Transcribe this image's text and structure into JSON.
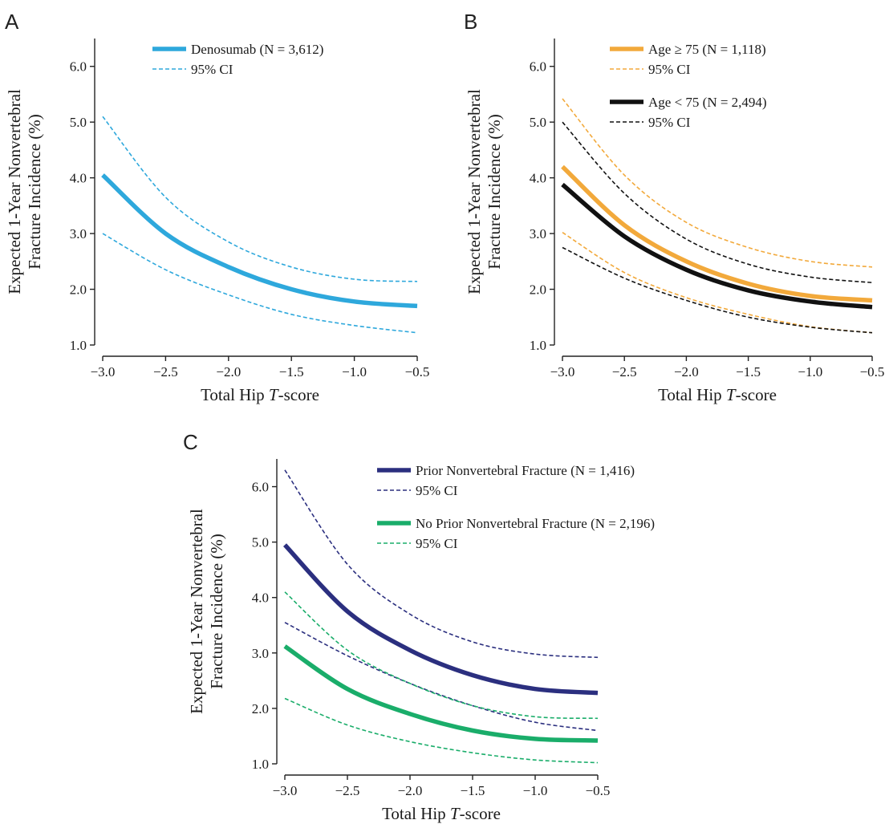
{
  "chart_data": [
    {
      "type": "line",
      "panel": "A",
      "xlabel": [
        "Total Hip ",
        "T",
        "-score"
      ],
      "ylabel": [
        "Expected 1-Year Nonvertebral",
        "Fracture Incidence (%)"
      ],
      "xlim": [
        -3.0,
        -0.5
      ],
      "ylim": [
        1.0,
        6.5
      ],
      "xticks": [
        -3.0,
        -2.5,
        -2.0,
        -1.5,
        -1.0,
        -0.5
      ],
      "xtick_labels": [
        "−3.0",
        "−2.5",
        "−2.0",
        "−1.5",
        "−1.0",
        "−0.5"
      ],
      "yticks": [
        1.0,
        2.0,
        3.0,
        4.0,
        5.0,
        6.0
      ],
      "ytick_labels": [
        "1.0",
        "2.0",
        "3.0",
        "4.0",
        "5.0",
        "6.0"
      ],
      "grid": false,
      "legend_position": "top-right",
      "x": [
        -3.0,
        -2.5,
        -2.0,
        -1.5,
        -1.0,
        -0.5
      ],
      "series": [
        {
          "name": "Denosumab (N = 3,612)",
          "color": "#2ea8dc",
          "style": "solid",
          "values": [
            4.05,
            3.0,
            2.4,
            2.0,
            1.78,
            1.7
          ]
        },
        {
          "name": "95% CI",
          "color": "#2ea8dc",
          "style": "dashed",
          "values": [
            5.1,
            3.65,
            2.85,
            2.4,
            2.18,
            2.14
          ]
        },
        {
          "name": "",
          "color": "#2ea8dc",
          "style": "dashed",
          "values": [
            3.0,
            2.35,
            1.9,
            1.55,
            1.35,
            1.22
          ]
        }
      ]
    },
    {
      "type": "line",
      "panel": "B",
      "xlabel": [
        "Total Hip ",
        "T",
        "-score"
      ],
      "ylabel": [
        "Expected 1-Year Nonvertebral",
        "Fracture Incidence (%)"
      ],
      "xlim": [
        -3.0,
        -0.5
      ],
      "ylim": [
        1.0,
        6.5
      ],
      "xticks": [
        -3.0,
        -2.5,
        -2.0,
        -1.5,
        -1.0,
        -0.5
      ],
      "xtick_labels": [
        "−3.0",
        "−2.5",
        "−2.0",
        "−1.5",
        "−1.0",
        "−0.5"
      ],
      "yticks": [
        1.0,
        2.0,
        3.0,
        4.0,
        5.0,
        6.0
      ],
      "ytick_labels": [
        "1.0",
        "2.0",
        "3.0",
        "4.0",
        "5.0",
        "6.0"
      ],
      "grid": false,
      "legend_position": "top-right",
      "x": [
        -3.0,
        -2.5,
        -2.0,
        -1.5,
        -1.0,
        -0.5
      ],
      "series": [
        {
          "name": "Age ≥ 75 (N = 1,118)",
          "color": "#f2a93b",
          "style": "solid",
          "values": [
            4.2,
            3.15,
            2.5,
            2.1,
            1.88,
            1.8
          ]
        },
        {
          "name": "95% CI",
          "color": "#f2a93b",
          "style": "dashed",
          "values": [
            5.42,
            4.05,
            3.2,
            2.75,
            2.5,
            2.4
          ]
        },
        {
          "name": "",
          "color": "#f2a93b",
          "style": "dashed",
          "values": [
            3.02,
            2.3,
            1.85,
            1.55,
            1.33,
            1.22
          ]
        },
        {
          "name": "Age < 75 (N = 2,494)",
          "color": "#111111",
          "style": "solid",
          "values": [
            3.88,
            2.95,
            2.35,
            1.98,
            1.78,
            1.68
          ]
        },
        {
          "name": "95% CI",
          "color": "#111111",
          "style": "dashed",
          "values": [
            5.0,
            3.72,
            2.9,
            2.45,
            2.22,
            2.12
          ]
        },
        {
          "name": "",
          "color": "#111111",
          "style": "dashed",
          "values": [
            2.75,
            2.2,
            1.8,
            1.5,
            1.32,
            1.22
          ]
        }
      ]
    },
    {
      "type": "line",
      "panel": "C",
      "xlabel": [
        "Total Hip ",
        "T",
        "-score"
      ],
      "ylabel": [
        "Expected 1-Year Nonvertebral",
        "Fracture Incidence (%)"
      ],
      "xlim": [
        -3.0,
        -0.5
      ],
      "ylim": [
        1.0,
        6.5
      ],
      "xticks": [
        -3.0,
        -2.5,
        -2.0,
        -1.5,
        -1.0,
        -0.5
      ],
      "xtick_labels": [
        "−3.0",
        "−2.5",
        "−2.0",
        "−1.5",
        "−1.0",
        "−0.5"
      ],
      "yticks": [
        1.0,
        2.0,
        3.0,
        4.0,
        5.0,
        6.0
      ],
      "ytick_labels": [
        "1.0",
        "2.0",
        "3.0",
        "4.0",
        "5.0",
        "6.0"
      ],
      "grid": false,
      "legend_position": "top-right",
      "x": [
        -3.0,
        -2.5,
        -2.0,
        -1.5,
        -1.0,
        -0.5
      ],
      "series": [
        {
          "name": "Prior Nonvertebral Fracture (N = 1,416)",
          "color": "#2b2f7f",
          "style": "solid",
          "values": [
            4.95,
            3.75,
            3.05,
            2.6,
            2.35,
            2.28
          ]
        },
        {
          "name": "95% CI",
          "color": "#2b2f7f",
          "style": "dashed",
          "values": [
            6.3,
            4.6,
            3.7,
            3.2,
            2.98,
            2.92
          ]
        },
        {
          "name": "",
          "color": "#2b2f7f",
          "style": "dashed",
          "values": [
            3.55,
            2.95,
            2.45,
            2.05,
            1.75,
            1.6
          ]
        },
        {
          "name": "No Prior Nonvertebral Fracture (N = 2,196)",
          "color": "#1aad6a",
          "style": "solid",
          "values": [
            3.12,
            2.35,
            1.9,
            1.6,
            1.45,
            1.42
          ]
        },
        {
          "name": "95% CI",
          "color": "#1aad6a",
          "style": "dashed",
          "values": [
            4.1,
            3.05,
            2.45,
            2.05,
            1.85,
            1.82
          ]
        },
        {
          "name": "",
          "color": "#1aad6a",
          "style": "dashed",
          "values": [
            2.18,
            1.7,
            1.4,
            1.2,
            1.07,
            1.02
          ]
        }
      ]
    }
  ]
}
